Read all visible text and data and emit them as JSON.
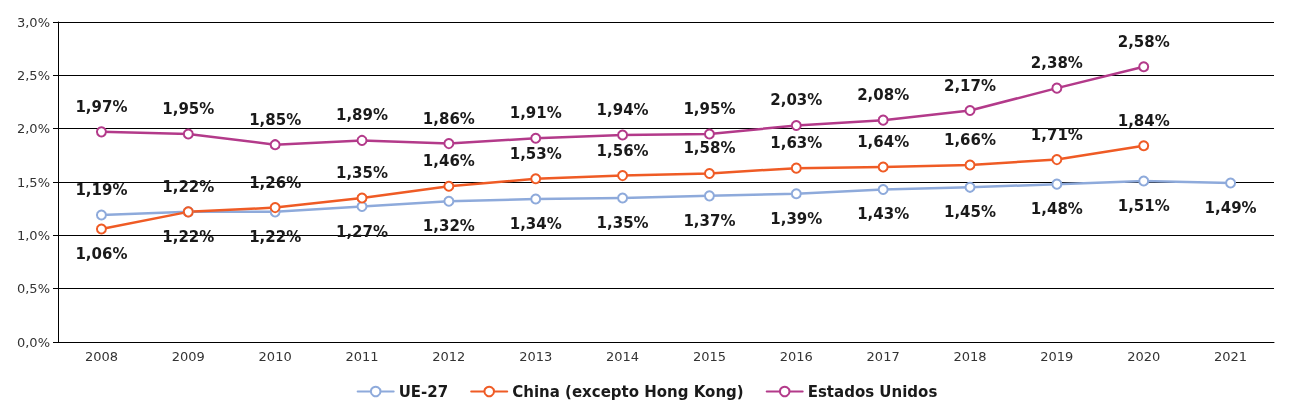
{
  "chart_data": {
    "type": "line",
    "categories": [
      "2008",
      "2009",
      "2010",
      "2011",
      "2012",
      "2013",
      "2014",
      "2015",
      "2016",
      "2017",
      "2018",
      "2019",
      "2020",
      "2021"
    ],
    "series": [
      {
        "name": "UE-27",
        "color": "#8eaadb",
        "values": [
          1.19,
          1.22,
          1.22,
          1.27,
          1.32,
          1.34,
          1.35,
          1.37,
          1.39,
          1.43,
          1.45,
          1.48,
          1.51,
          1.49
        ],
        "value_labels": [
          "1,19%",
          "1,22%",
          "1,22%",
          "1,27%",
          "1,32%",
          "1,34%",
          "1,35%",
          "1,37%",
          "1,39%",
          "1,43%",
          "1,45%",
          "1,48%",
          "1,51%",
          "1,49%"
        ]
      },
      {
        "name": "China (excepto Hong Kong)",
        "color": "#ef5b25",
        "values": [
          1.06,
          1.22,
          1.26,
          1.35,
          1.46,
          1.53,
          1.56,
          1.58,
          1.63,
          1.64,
          1.66,
          1.71,
          1.84,
          null
        ],
        "value_labels": [
          "1,06%",
          "1,22%",
          "1,26%",
          "1,35%",
          "1,46%",
          "1,53%",
          "1,56%",
          "1,58%",
          "1,63%",
          "1,64%",
          "1,66%",
          "1,71%",
          "1,84%",
          null
        ]
      },
      {
        "name": "Estados Unidos",
        "color": "#b33a8a",
        "values": [
          1.97,
          1.95,
          1.85,
          1.89,
          1.86,
          1.91,
          1.94,
          1.95,
          2.03,
          2.08,
          2.17,
          2.38,
          2.58,
          null
        ],
        "value_labels": [
          "1,97%",
          "1,95%",
          "1,85%",
          "1,89%",
          "1,86%",
          "1,91%",
          "1,94%",
          "1,95%",
          "2,03%",
          "2,08%",
          "2,17%",
          "2,38%",
          "2,58%",
          null
        ]
      }
    ],
    "ylim": [
      0,
      3
    ],
    "yticks": [
      {
        "value": 0,
        "label": "0,0%"
      },
      {
        "value": 0.5,
        "label": "0,5%"
      },
      {
        "value": 1,
        "label": "1,0%"
      },
      {
        "value": 1.5,
        "label": "1,5%"
      },
      {
        "value": 2,
        "label": "2,0%"
      },
      {
        "value": 2.5,
        "label": "2,5%"
      },
      {
        "value": 3,
        "label": "3,0%"
      }
    ],
    "grid": "y",
    "legend": "bottom",
    "marker": "circle",
    "line_style": "solid"
  }
}
